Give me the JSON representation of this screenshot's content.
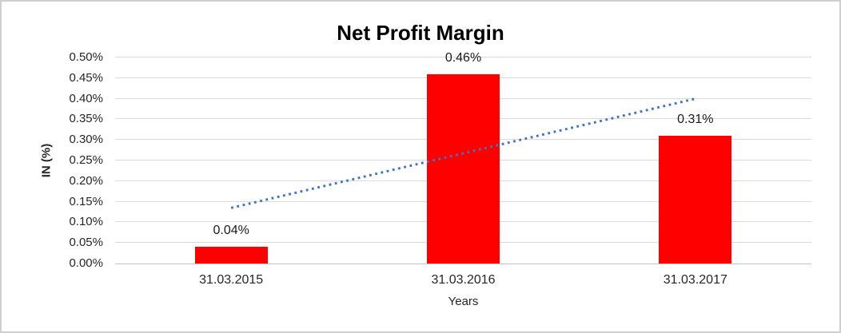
{
  "frame": {
    "background": "#ffffff",
    "border_color": "#cfcfcf"
  },
  "chart_data": {
    "type": "bar",
    "title": "Net Profit Margin",
    "xlabel": "Years",
    "ylabel": "IN (%)",
    "categories": [
      "31.03.2015",
      "31.03.2016",
      "31.03.2017"
    ],
    "values": [
      0.04,
      0.46,
      0.31
    ],
    "bar_labels": [
      "0.04%",
      "0.46%",
      "0.31%"
    ],
    "bar_color": "#ff0000",
    "ylim": [
      0,
      0.5
    ],
    "y_tick_values": [
      0,
      0.05,
      0.1,
      0.15,
      0.2,
      0.25,
      0.3,
      0.35,
      0.4,
      0.45,
      0.5
    ],
    "y_tick_labels": [
      "0.00%",
      "0.05%",
      "0.10%",
      "0.15%",
      "0.20%",
      "0.25%",
      "0.30%",
      "0.35%",
      "0.40%",
      "0.45%",
      "0.50%"
    ],
    "grid": true,
    "gridline_color": "#d9d9d9",
    "baseline_color": "#c3c3c3",
    "legend": "none",
    "trendline": {
      "shape": "linear",
      "line_style": "dotted",
      "color": "#4472c4",
      "start": {
        "category_index": 0,
        "value": 0.135
      },
      "end": {
        "category_index": 2,
        "value": 0.4
      }
    }
  }
}
